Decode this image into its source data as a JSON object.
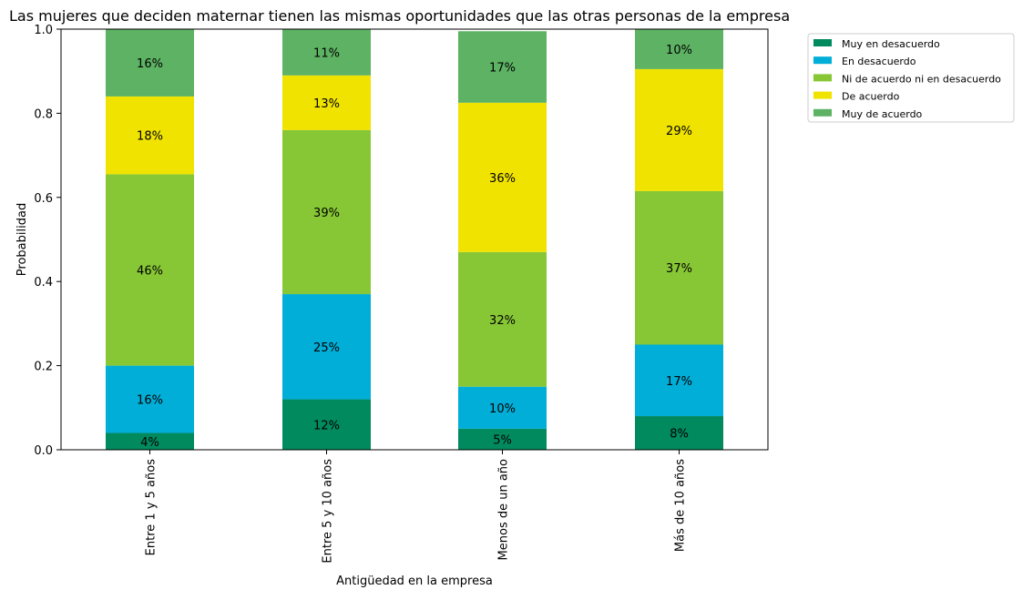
{
  "chart_data": {
    "type": "bar",
    "stacked": true,
    "title": "Las mujeres que deciden maternar tienen las mismas oportunidades que las otras personas de la empresa",
    "xlabel": "Antigüedad en la empresa",
    "ylabel": "Probabilidad",
    "ylim": [
      0,
      1
    ],
    "yticks": [
      "0.0",
      "0.2",
      "0.4",
      "0.6",
      "0.8",
      "1.0"
    ],
    "legend_position": "outside top-right",
    "categories": [
      "Entre 1 y 5 años",
      "Entre 5 y 10 años",
      "Menos de un año",
      "Más de 10 años"
    ],
    "series": [
      {
        "name": "Muy en desacuerdo",
        "color": "#008a5e",
        "values": [
          0.04,
          0.12,
          0.05,
          0.08
        ],
        "labels": [
          "4%",
          "12%",
          "5%",
          "8%"
        ]
      },
      {
        "name": "En desacuerdo",
        "color": "#00aed7",
        "values": [
          0.16,
          0.25,
          0.1,
          0.17
        ],
        "labels": [
          "16%",
          "25%",
          "10%",
          "17%"
        ]
      },
      {
        "name": "Ni de acuerdo ni en desacuerdo",
        "color": "#87c735",
        "values": [
          0.455,
          0.39,
          0.32,
          0.365
        ],
        "labels": [
          "46%",
          "39%",
          "32%",
          "37%"
        ]
      },
      {
        "name": "De acuerdo",
        "color": "#f0e300",
        "values": [
          0.185,
          0.13,
          0.355,
          0.29
        ],
        "labels": [
          "18%",
          "13%",
          "36%",
          "29%"
        ]
      },
      {
        "name": "Muy de acuerdo",
        "color": "#5db263",
        "values": [
          0.16,
          0.11,
          0.17,
          0.1
        ],
        "labels": [
          "16%",
          "11%",
          "17%",
          "10%"
        ]
      }
    ]
  }
}
